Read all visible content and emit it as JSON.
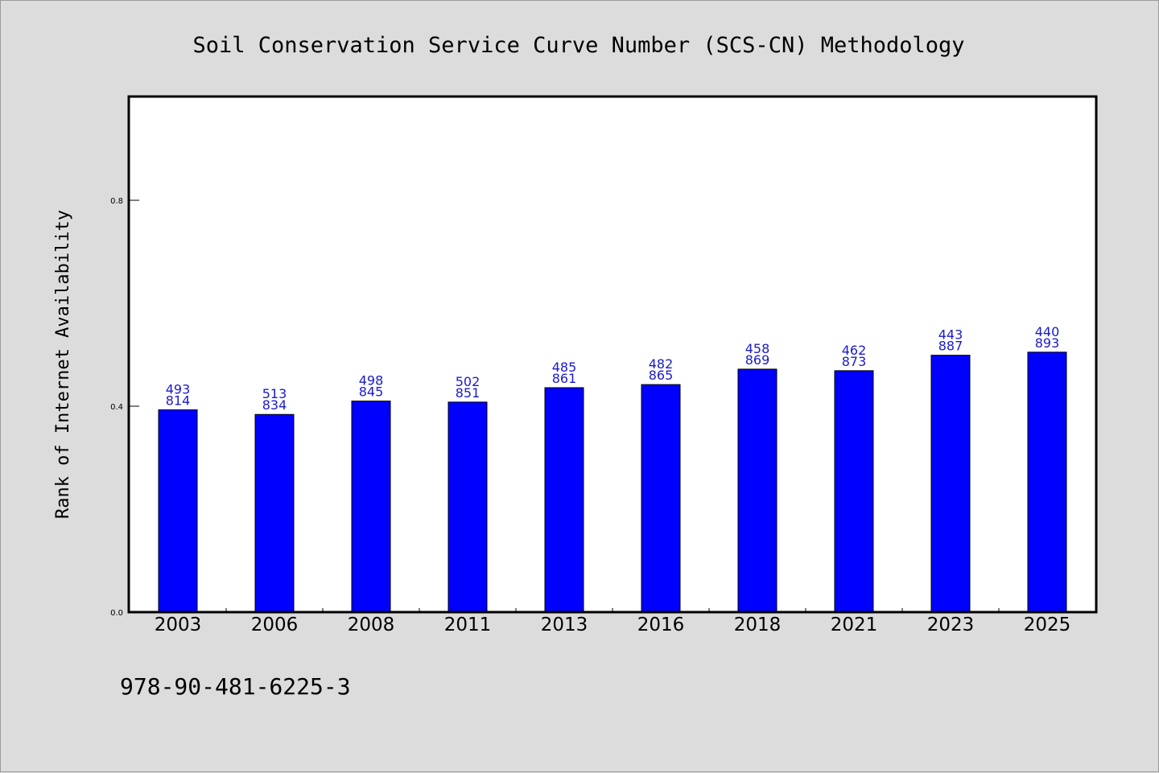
{
  "chart_data": {
    "type": "bar",
    "title": "Soil Conservation Service Curve Number (SCS-CN) Methodology",
    "xlabel": "",
    "ylabel": "Rank of Internet Availability",
    "ylim": [
      0,
      1.0
    ],
    "yticks": [
      {
        "value": 0.0,
        "label": "0.0"
      },
      {
        "value": 0.4,
        "label": "0.4"
      },
      {
        "value": 0.8,
        "label": "0.8"
      }
    ],
    "grid": false,
    "categories": [
      "2003",
      "2006",
      "2008",
      "2011",
      "2013",
      "2016",
      "2018",
      "2021",
      "2023",
      "2025"
    ],
    "values": [
      0.393,
      0.384,
      0.41,
      0.408,
      0.436,
      0.442,
      0.472,
      0.469,
      0.499,
      0.505
    ],
    "bar_labels_top": [
      "493",
      "513",
      "498",
      "502",
      "485",
      "482",
      "458",
      "462",
      "443",
      "440"
    ],
    "bar_labels_bottom": [
      "814",
      "834",
      "845",
      "851",
      "861",
      "865",
      "869",
      "873",
      "887",
      "893"
    ],
    "bar_color": "#0000ff",
    "label_color": "#1a1acc"
  },
  "footer": {
    "text": "978-90-481-6225-3"
  }
}
